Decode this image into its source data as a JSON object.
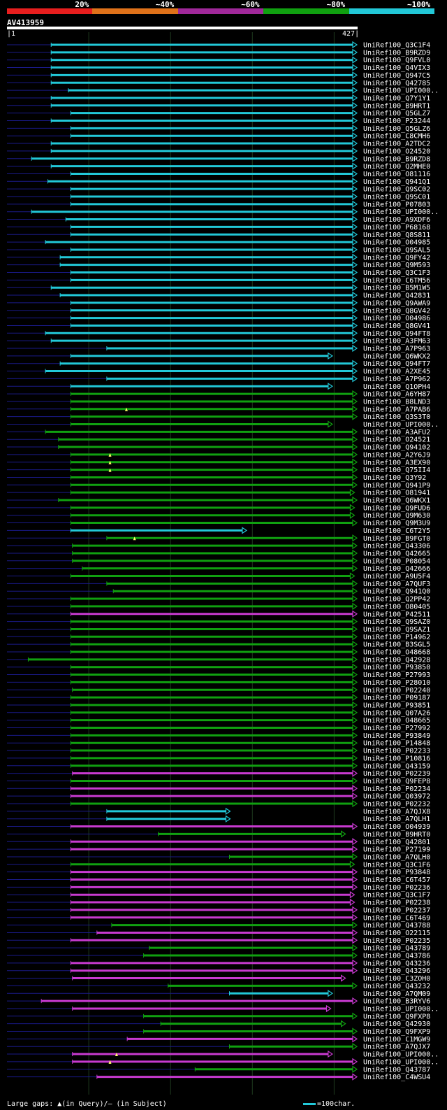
{
  "chart_data": {
    "type": "blast-alignment",
    "query": {
      "name": "AV413959",
      "start": 1,
      "end": 427
    },
    "identity_legend": [
      {
        "label": "20%",
        "color": "#e81e1e"
      },
      {
        "label": "~40%",
        "color": "#e0721a"
      },
      {
        "label": "~60%",
        "color": "#a0289a"
      },
      {
        "label": "~80%",
        "color": "#10a010"
      },
      {
        "label": "~100%",
        "color": "#22c8d8"
      }
    ],
    "colors": {
      "cyan": "#22c8d8",
      "green": "#10a010",
      "magenta": "#c83ad0",
      "thin": "#1a1a88"
    },
    "hits": [
      {
        "name": "UniRef100_Q3C1F4",
        "s": 54,
        "e": 427,
        "c": "cyan"
      },
      {
        "name": "UniRef100_B9RZD9",
        "s": 54,
        "e": 427,
        "c": "cyan"
      },
      {
        "name": "UniRef100_Q9FVL0",
        "s": 54,
        "e": 427,
        "c": "cyan"
      },
      {
        "name": "UniRef100_Q4VIX3",
        "s": 54,
        "e": 427,
        "c": "cyan"
      },
      {
        "name": "UniRef100_Q947C5",
        "s": 54,
        "e": 427,
        "c": "cyan"
      },
      {
        "name": "UniRef100_Q42785",
        "s": 54,
        "e": 427,
        "c": "cyan"
      },
      {
        "name": "UniRef100_UPI000..",
        "s": 75,
        "e": 427,
        "c": "cyan"
      },
      {
        "name": "UniRef100_Q7Y1Y1",
        "s": 54,
        "e": 427,
        "c": "cyan"
      },
      {
        "name": "UniRef100_B9HRT1",
        "s": 54,
        "e": 427,
        "c": "cyan"
      },
      {
        "name": "UniRef100_Q5GLZ7",
        "s": 78,
        "e": 427,
        "c": "cyan"
      },
      {
        "name": "UniRef100_P23244",
        "s": 54,
        "e": 427,
        "c": "cyan"
      },
      {
        "name": "UniRef100_Q5GLZ6",
        "s": 78,
        "e": 427,
        "c": "cyan"
      },
      {
        "name": "UniRef100_C8CMH6",
        "s": 78,
        "e": 427,
        "c": "cyan"
      },
      {
        "name": "UniRef100_A2TDC2",
        "s": 54,
        "e": 427,
        "c": "cyan"
      },
      {
        "name": "UniRef100_O24520",
        "s": 54,
        "e": 427,
        "c": "cyan"
      },
      {
        "name": "UniRef100_B9RZD8",
        "s": 30,
        "e": 427,
        "c": "cyan"
      },
      {
        "name": "UniRef100_Q2MHE0",
        "s": 54,
        "e": 427,
        "c": "cyan"
      },
      {
        "name": "UniRef100_O81116",
        "s": 78,
        "e": 427,
        "c": "cyan"
      },
      {
        "name": "UniRef100_Q941Q1",
        "s": 50,
        "e": 427,
        "c": "cyan"
      },
      {
        "name": "UniRef100_Q9SC02",
        "s": 78,
        "e": 427,
        "c": "cyan"
      },
      {
        "name": "UniRef100_Q9SC01",
        "s": 78,
        "e": 427,
        "c": "cyan"
      },
      {
        "name": "UniRef100_P07803",
        "s": 78,
        "e": 427,
        "c": "cyan"
      },
      {
        "name": "UniRef100_UPI000..",
        "s": 30,
        "e": 427,
        "c": "cyan"
      },
      {
        "name": "UniRef100_A9XDF6",
        "s": 72,
        "e": 427,
        "c": "cyan"
      },
      {
        "name": "UniRef100_P68168",
        "s": 78,
        "e": 427,
        "c": "cyan"
      },
      {
        "name": "UniRef100_Q8S811",
        "s": 78,
        "e": 427,
        "c": "cyan"
      },
      {
        "name": "UniRef100_O04985",
        "s": 47,
        "e": 427,
        "c": "cyan"
      },
      {
        "name": "UniRef100_Q9SAL5",
        "s": 78,
        "e": 427,
        "c": "cyan"
      },
      {
        "name": "UniRef100_Q9FY42",
        "s": 65,
        "e": 427,
        "c": "cyan"
      },
      {
        "name": "UniRef100_Q9M593",
        "s": 65,
        "e": 427,
        "c": "cyan"
      },
      {
        "name": "UniRef100_Q3C1F3",
        "s": 78,
        "e": 427,
        "c": "cyan"
      },
      {
        "name": "UniRef100_C6TM56",
        "s": 78,
        "e": 427,
        "c": "cyan"
      },
      {
        "name": "UniRef100_B5M1W5",
        "s": 54,
        "e": 427,
        "c": "cyan"
      },
      {
        "name": "UniRef100_Q42831",
        "s": 65,
        "e": 427,
        "c": "cyan"
      },
      {
        "name": "UniRef100_Q9AWA9",
        "s": 78,
        "e": 427,
        "c": "cyan"
      },
      {
        "name": "UniRef100_Q8GV42",
        "s": 78,
        "e": 427,
        "c": "cyan"
      },
      {
        "name": "UniRef100_O04986",
        "s": 78,
        "e": 427,
        "c": "cyan"
      },
      {
        "name": "UniRef100_Q8GV41",
        "s": 78,
        "e": 427,
        "c": "cyan"
      },
      {
        "name": "UniRef100_Q94FT8",
        "s": 47,
        "e": 427,
        "c": "cyan"
      },
      {
        "name": "UniRef100_A3FM63",
        "s": 54,
        "e": 427,
        "c": "cyan"
      },
      {
        "name": "UniRef100_A7P963",
        "s": 122,
        "e": 427,
        "c": "cyan"
      },
      {
        "name": "UniRef100_Q6WKX2",
        "s": 78,
        "e": 397,
        "c": "cyan"
      },
      {
        "name": "UniRef100_Q94FT7",
        "s": 65,
        "e": 427,
        "c": "cyan"
      },
      {
        "name": "UniRef100_A2XE45",
        "s": 47,
        "e": 427,
        "c": "cyan"
      },
      {
        "name": "UniRef100_A7P962",
        "s": 122,
        "e": 427,
        "c": "cyan"
      },
      {
        "name": "UniRef100_Q1OPH4",
        "s": 78,
        "e": 397,
        "c": "cyan"
      },
      {
        "name": "UniRef100_A6YH87",
        "s": 78,
        "e": 427,
        "c": "green"
      },
      {
        "name": "UniRef100_B8LND3",
        "s": 78,
        "e": 427,
        "c": "green"
      },
      {
        "name": "UniRef100_A7PAB6",
        "s": 78,
        "e": 427,
        "c": "green",
        "gap": 146
      },
      {
        "name": "UniRef100_Q3S3T0",
        "s": 78,
        "e": 427,
        "c": "green"
      },
      {
        "name": "UniRef100_UPI000..",
        "s": 78,
        "e": 397,
        "c": "green"
      },
      {
        "name": "UniRef100_A3AFU2",
        "s": 47,
        "e": 427,
        "c": "green"
      },
      {
        "name": "UniRef100_O24521",
        "s": 63,
        "e": 427,
        "c": "green"
      },
      {
        "name": "UniRef100_Q94102",
        "s": 63,
        "e": 427,
        "c": "green"
      },
      {
        "name": "UniRef100_A2Y6J9",
        "s": 78,
        "e": 427,
        "c": "green",
        "gap": 126
      },
      {
        "name": "UniRef100_A3EX90",
        "s": 78,
        "e": 427,
        "c": "green",
        "gap": 126
      },
      {
        "name": "UniRef100_Q75II4",
        "s": 78,
        "e": 427,
        "c": "green",
        "gap": 126
      },
      {
        "name": "UniRef100_Q3Y92",
        "s": 78,
        "e": 427,
        "c": "green"
      },
      {
        "name": "UniRef100_Q941P9",
        "s": 78,
        "e": 427,
        "c": "green"
      },
      {
        "name": "UniRef100_O81941",
        "s": 78,
        "e": 424,
        "c": "green"
      },
      {
        "name": "UniRef100_Q6WKX1",
        "s": 63,
        "e": 427,
        "c": "green"
      },
      {
        "name": "UniRef100_Q9FUD6",
        "s": 78,
        "e": 424,
        "c": "green"
      },
      {
        "name": "UniRef100_Q9M630",
        "s": 78,
        "e": 424,
        "c": "green"
      },
      {
        "name": "UniRef100_Q9M3U9",
        "s": 78,
        "e": 427,
        "c": "green"
      },
      {
        "name": "UniRef100_C6T2Y5",
        "s": 78,
        "e": 292,
        "c": "cyan"
      },
      {
        "name": "UniRef100_B9FGT0",
        "s": 122,
        "e": 427,
        "c": "green",
        "gap": 156
      },
      {
        "name": "UniRef100_Q43306",
        "s": 80,
        "e": 427,
        "c": "green"
      },
      {
        "name": "UniRef100_Q42665",
        "s": 80,
        "e": 427,
        "c": "green"
      },
      {
        "name": "UniRef100_P08054",
        "s": 80,
        "e": 427,
        "c": "green"
      },
      {
        "name": "UniRef100_Q42666",
        "s": 92,
        "e": 427,
        "c": "green"
      },
      {
        "name": "UniRef100_A9U5F4",
        "s": 78,
        "e": 424,
        "c": "green"
      },
      {
        "name": "UniRef100_A7QUF3",
        "s": 122,
        "e": 427,
        "c": "green"
      },
      {
        "name": "UniRef100_Q941Q0",
        "s": 130,
        "e": 427,
        "c": "green"
      },
      {
        "name": "UniRef100_Q2PP42",
        "s": 78,
        "e": 427,
        "c": "green"
      },
      {
        "name": "UniRef100_O80405",
        "s": 78,
        "e": 427,
        "c": "green"
      },
      {
        "name": "UniRef100_P42511",
        "s": 78,
        "e": 427,
        "c": "magenta"
      },
      {
        "name": "UniRef100_Q9SAZ0",
        "s": 78,
        "e": 427,
        "c": "green"
      },
      {
        "name": "UniRef100_Q9SAZ1",
        "s": 78,
        "e": 427,
        "c": "green"
      },
      {
        "name": "UniRef100_P14962",
        "s": 78,
        "e": 427,
        "c": "green"
      },
      {
        "name": "UniRef100_B3SGL5",
        "s": 78,
        "e": 427,
        "c": "green"
      },
      {
        "name": "UniRef100_O48668",
        "s": 78,
        "e": 427,
        "c": "green"
      },
      {
        "name": "UniRef100_Q42928",
        "s": 26,
        "e": 427,
        "c": "green"
      },
      {
        "name": "UniRef100_P93850",
        "s": 78,
        "e": 427,
        "c": "green"
      },
      {
        "name": "UniRef100_P27993",
        "s": 78,
        "e": 427,
        "c": "green"
      },
      {
        "name": "UniRef100_P28010",
        "s": 78,
        "e": 427,
        "c": "green"
      },
      {
        "name": "UniRef100_P02240",
        "s": 80,
        "e": 427,
        "c": "green"
      },
      {
        "name": "UniRef100_P09187",
        "s": 78,
        "e": 427,
        "c": "green"
      },
      {
        "name": "UniRef100_P93851",
        "s": 78,
        "e": 427,
        "c": "green"
      },
      {
        "name": "UniRef100_Q07A26",
        "s": 78,
        "e": 427,
        "c": "green"
      },
      {
        "name": "UniRef100_O48665",
        "s": 78,
        "e": 427,
        "c": "green"
      },
      {
        "name": "UniRef100_P27992",
        "s": 78,
        "e": 427,
        "c": "green"
      },
      {
        "name": "UniRef100_P93849",
        "s": 78,
        "e": 427,
        "c": "green"
      },
      {
        "name": "UniRef100_P14848",
        "s": 78,
        "e": 427,
        "c": "green"
      },
      {
        "name": "UniRef100_P02233",
        "s": 78,
        "e": 427,
        "c": "green"
      },
      {
        "name": "UniRef100_P10816",
        "s": 78,
        "e": 427,
        "c": "green"
      },
      {
        "name": "UniRef100_Q43159",
        "s": 78,
        "e": 427,
        "c": "green"
      },
      {
        "name": "UniRef100_P02239",
        "s": 80,
        "e": 427,
        "c": "magenta"
      },
      {
        "name": "UniRef100_Q9FEP8",
        "s": 78,
        "e": 427,
        "c": "green"
      },
      {
        "name": "UniRef100_P02234",
        "s": 78,
        "e": 427,
        "c": "magenta"
      },
      {
        "name": "UniRef100_Q03972",
        "s": 78,
        "e": 427,
        "c": "magenta"
      },
      {
        "name": "UniRef100_P02232",
        "s": 78,
        "e": 427,
        "c": "green"
      },
      {
        "name": "UniRef100_A7QJX8",
        "s": 122,
        "e": 272,
        "c": "cyan"
      },
      {
        "name": "UniRef100_A7QLH1",
        "s": 122,
        "e": 272,
        "c": "cyan"
      },
      {
        "name": "UniRef100_O04939",
        "s": 78,
        "e": 427,
        "c": "magenta"
      },
      {
        "name": "UniRef100_B9HRT0",
        "s": 185,
        "e": 413,
        "c": "green"
      },
      {
        "name": "UniRef100_Q42801",
        "s": 78,
        "e": 427,
        "c": "magenta"
      },
      {
        "name": "UniRef100_P27199",
        "s": 78,
        "e": 427,
        "c": "magenta"
      },
      {
        "name": "UniRef100_A7QLH0",
        "s": 272,
        "e": 427,
        "c": "green"
      },
      {
        "name": "UniRef100_Q3C1F6",
        "s": 78,
        "e": 424,
        "c": "green"
      },
      {
        "name": "UniRef100_P93848",
        "s": 78,
        "e": 427,
        "c": "magenta"
      },
      {
        "name": "UniRef100_C6T457",
        "s": 78,
        "e": 427,
        "c": "magenta"
      },
      {
        "name": "UniRef100_P02236",
        "s": 78,
        "e": 427,
        "c": "magenta"
      },
      {
        "name": "UniRef100_Q3C1F7",
        "s": 78,
        "e": 424,
        "c": "magenta"
      },
      {
        "name": "UniRef100_P02238",
        "s": 78,
        "e": 424,
        "c": "magenta"
      },
      {
        "name": "UniRef100_P02237",
        "s": 78,
        "e": 427,
        "c": "magenta"
      },
      {
        "name": "UniRef100_C6T469",
        "s": 78,
        "e": 427,
        "c": "magenta"
      },
      {
        "name": "UniRef100_Q43788",
        "s": 128,
        "e": 427,
        "c": "green"
      },
      {
        "name": "UniRef100_O22115",
        "s": 110,
        "e": 427,
        "c": "magenta"
      },
      {
        "name": "UniRef100_P02235",
        "s": 78,
        "e": 427,
        "c": "magenta"
      },
      {
        "name": "UniRef100_Q43789",
        "s": 174,
        "e": 427,
        "c": "green"
      },
      {
        "name": "UniRef100_Q43786",
        "s": 167,
        "e": 427,
        "c": "green"
      },
      {
        "name": "UniRef100_Q43236",
        "s": 78,
        "e": 427,
        "c": "magenta"
      },
      {
        "name": "UniRef100_Q43296",
        "s": 78,
        "e": 427,
        "c": "magenta"
      },
      {
        "name": "UniRef100_C3ZOH0",
        "s": 80,
        "e": 413,
        "c": "magenta"
      },
      {
        "name": "UniRef100_Q43232",
        "s": 197,
        "e": 427,
        "c": "green"
      },
      {
        "name": "UniRef100_A7QM09",
        "s": 272,
        "e": 397,
        "c": "cyan"
      },
      {
        "name": "UniRef100_B3RYV6",
        "s": 42,
        "e": 427,
        "c": "magenta"
      },
      {
        "name": "UniRef100_UPI000..",
        "s": 80,
        "e": 395,
        "c": "magenta"
      },
      {
        "name": "UniRef100_Q9FXP8",
        "s": 167,
        "e": 427,
        "c": "green"
      },
      {
        "name": "UniRef100_Q42930",
        "s": 188,
        "e": 413,
        "c": "green"
      },
      {
        "name": "UniRef100_Q9FXP9",
        "s": 167,
        "e": 427,
        "c": "green"
      },
      {
        "name": "UniRef100_C1MGW9",
        "s": 147,
        "e": 427,
        "c": "magenta"
      },
      {
        "name": "UniRef100_A7QJX7",
        "s": 272,
        "e": 427,
        "c": "green"
      },
      {
        "name": "UniRef100_UPI000..",
        "s": 80,
        "e": 397,
        "c": "magenta",
        "gap": 134
      },
      {
        "name": "UniRef100_UPI000..",
        "s": 80,
        "e": 427,
        "c": "magenta",
        "gap": 126
      },
      {
        "name": "UniRef100_Q43787",
        "s": 230,
        "e": 427,
        "c": "green"
      },
      {
        "name": "UniRef100_C4WSU4",
        "s": 110,
        "e": 427,
        "c": "magenta"
      }
    ]
  },
  "footer": {
    "text": "Large gaps: ▲(in Query)/– (in Subject)",
    "scale": "=100char."
  }
}
